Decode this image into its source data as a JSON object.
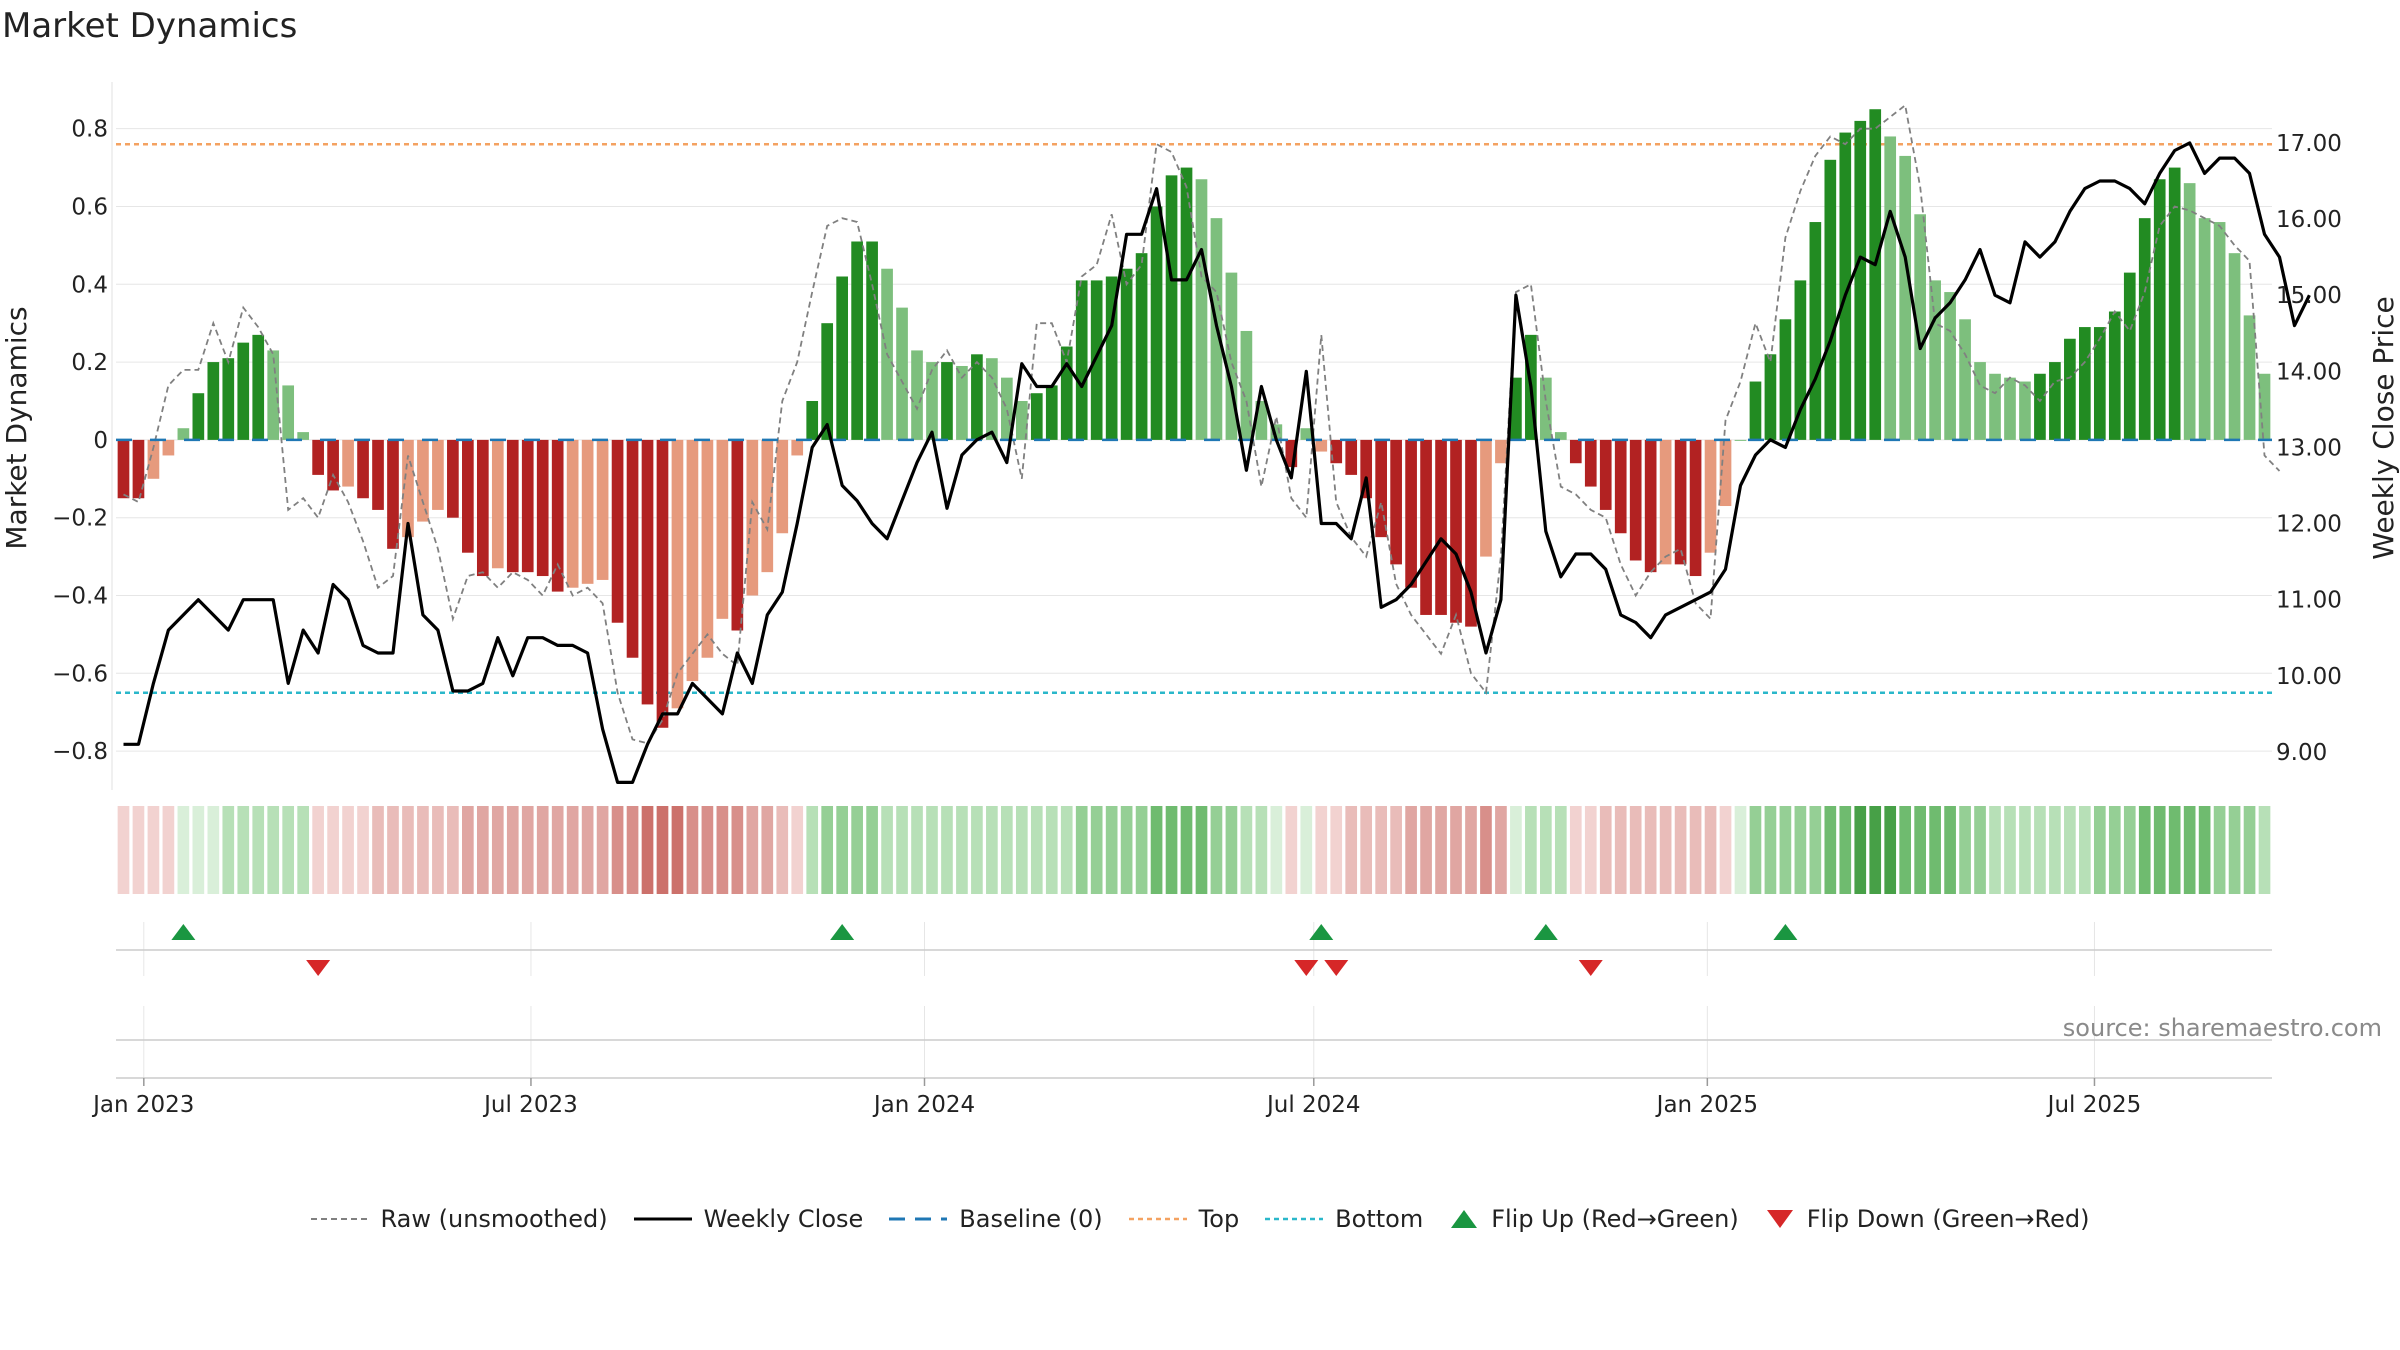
{
  "title": "Market Dynamics",
  "source": "source: sharemaestro.com",
  "colors": {
    "green_strong": "#228b22",
    "green_weak": "#7dbf7d",
    "red_strong": "#b22222",
    "red_weak": "#e69a7d",
    "price": "#000000",
    "raw": "#808080",
    "baseline": "#1f77b4",
    "top": "#f4a261",
    "bottom": "#2ab7ca",
    "flip_up": "#1a9641",
    "flip_down": "#d62728"
  },
  "legend": [
    {
      "key": "raw",
      "label": "Raw (unsmoothed)"
    },
    {
      "key": "close",
      "label": "Weekly Close"
    },
    {
      "key": "baseline",
      "label": "Baseline (0)"
    },
    {
      "key": "top",
      "label": "Top"
    },
    {
      "key": "bottom",
      "label": "Bottom"
    },
    {
      "key": "flip_up",
      "label": "Flip Up (Red→Green)"
    },
    {
      "key": "flip_down",
      "label": "Flip Down (Green→Red)"
    }
  ],
  "chart_data": {
    "type": "bar",
    "ylabel": "Market Dynamics",
    "y2label": "Weekly Close Price",
    "ylim": [
      -0.9,
      0.92
    ],
    "y2lim": [
      8.5,
      17.8
    ],
    "yticks": [
      -0.8,
      -0.6,
      -0.4,
      -0.2,
      0,
      0.2,
      0.4,
      0.6,
      0.8
    ],
    "yticklabels": [
      "−0.8",
      "−0.6",
      "−0.4",
      "−0.2",
      "0",
      "0.2",
      "0.4",
      "0.6",
      "0.8"
    ],
    "y2ticks": [
      9,
      10,
      11,
      12,
      13,
      14,
      15,
      16,
      17
    ],
    "y2ticklabels": [
      "9.00",
      "10.00",
      "11.00",
      "12.00",
      "13.00",
      "14.00",
      "15.00",
      "16.00",
      "17.00"
    ],
    "x_start": "2022-12-19",
    "xticks": [
      "2023-01-01",
      "2023-07-01",
      "2024-01-01",
      "2024-07-01",
      "2025-01-01",
      "2025-07-01"
    ],
    "xticklabels": [
      "Jan 2023",
      "Jul 2023",
      "Jan 2024",
      "Jul 2024",
      "Jan 2025",
      "Jul 2025"
    ],
    "top_level": 0.76,
    "bottom_level": -0.65,
    "baseline": 0,
    "grid": true,
    "legend_position": "bottom-center",
    "momentum": [
      -0.15,
      -0.15,
      -0.1,
      -0.04,
      0.03,
      0.12,
      0.2,
      0.21,
      0.25,
      0.27,
      0.23,
      0.14,
      0.02,
      -0.09,
      -0.13,
      -0.12,
      -0.15,
      -0.18,
      -0.28,
      -0.25,
      -0.21,
      -0.18,
      -0.2,
      -0.29,
      -0.35,
      -0.33,
      -0.34,
      -0.34,
      -0.35,
      -0.39,
      -0.38,
      -0.37,
      -0.36,
      -0.47,
      -0.56,
      -0.68,
      -0.74,
      -0.69,
      -0.62,
      -0.56,
      -0.46,
      -0.49,
      -0.4,
      -0.34,
      -0.24,
      -0.04,
      0.1,
      0.3,
      0.42,
      0.51,
      0.51,
      0.44,
      0.34,
      0.23,
      0.2,
      0.2,
      0.19,
      0.22,
      0.21,
      0.16,
      0.1,
      0.12,
      0.14,
      0.24,
      0.41,
      0.41,
      0.42,
      0.44,
      0.48,
      0.6,
      0.68,
      0.7,
      0.67,
      0.57,
      0.43,
      0.28,
      0.1,
      0.04,
      -0.07,
      0.03,
      -0.03,
      -0.06,
      -0.09,
      -0.15,
      -0.25,
      -0.32,
      -0.38,
      -0.45,
      -0.45,
      -0.47,
      -0.48,
      -0.3,
      -0.06,
      0.16,
      0.27,
      0.16,
      0.02,
      -0.06,
      -0.12,
      -0.18,
      -0.24,
      -0.31,
      -0.34,
      -0.32,
      -0.32,
      -0.35,
      -0.29,
      -0.17,
      0.0,
      0.15,
      0.22,
      0.31,
      0.41,
      0.56,
      0.72,
      0.79,
      0.82,
      0.85,
      0.78,
      0.73,
      0.58,
      0.41,
      0.38,
      0.31,
      0.2,
      0.17,
      0.16,
      0.15,
      0.17,
      0.2,
      0.26,
      0.29,
      0.29,
      0.33,
      0.43,
      0.57,
      0.67,
      0.7,
      0.66,
      0.57,
      0.56,
      0.48,
      0.32,
      0.17
    ],
    "raw": [
      -0.14,
      -0.16,
      -0.02,
      0.14,
      0.18,
      0.18,
      0.3,
      0.2,
      0.34,
      0.29,
      0.22,
      -0.18,
      -0.15,
      -0.2,
      -0.09,
      -0.16,
      -0.26,
      -0.38,
      -0.35,
      -0.04,
      -0.16,
      -0.28,
      -0.46,
      -0.35,
      -0.34,
      -0.38,
      -0.34,
      -0.36,
      -0.4,
      -0.32,
      -0.4,
      -0.38,
      -0.42,
      -0.65,
      -0.77,
      -0.78,
      -0.72,
      -0.6,
      -0.55,
      -0.5,
      -0.55,
      -0.58,
      -0.16,
      -0.23,
      0.1,
      0.2,
      0.38,
      0.55,
      0.57,
      0.56,
      0.4,
      0.22,
      0.15,
      0.08,
      0.18,
      0.23,
      0.16,
      0.2,
      0.16,
      0.08,
      -0.1,
      0.3,
      0.3,
      0.2,
      0.42,
      0.45,
      0.58,
      0.4,
      0.45,
      0.76,
      0.74,
      0.65,
      0.42,
      0.38,
      0.2,
      0.1,
      -0.12,
      0.06,
      -0.15,
      -0.2,
      0.27,
      -0.16,
      -0.25,
      -0.3,
      -0.16,
      -0.37,
      -0.45,
      -0.5,
      -0.55,
      -0.45,
      -0.6,
      -0.65,
      -0.3,
      0.38,
      0.4,
      0.1,
      -0.12,
      -0.14,
      -0.18,
      -0.2,
      -0.32,
      -0.4,
      -0.34,
      -0.3,
      -0.28,
      -0.42,
      -0.46,
      0.05,
      0.15,
      0.3,
      0.2,
      0.52,
      0.64,
      0.73,
      0.78,
      0.76,
      0.8,
      0.8,
      0.83,
      0.86,
      0.65,
      0.3,
      0.28,
      0.22,
      0.14,
      0.12,
      0.16,
      0.14,
      0.1,
      0.15,
      0.16,
      0.2,
      0.26,
      0.33,
      0.28,
      0.38,
      0.55,
      0.6,
      0.59,
      0.57,
      0.55,
      0.5,
      0.46,
      -0.04,
      -0.08
    ],
    "close": [
      9.1,
      9.1,
      9.9,
      10.6,
      10.8,
      11.0,
      10.8,
      10.6,
      11.0,
      11.0,
      11.0,
      9.9,
      10.6,
      10.3,
      11.2,
      11.0,
      10.4,
      10.3,
      10.3,
      12.0,
      10.8,
      10.6,
      9.8,
      9.8,
      9.9,
      10.5,
      10.0,
      10.5,
      10.5,
      10.4,
      10.4,
      10.3,
      9.3,
      8.6,
      8.6,
      9.1,
      9.5,
      9.5,
      9.9,
      9.7,
      9.5,
      10.3,
      9.9,
      10.8,
      11.1,
      12.0,
      13.0,
      13.3,
      12.5,
      12.3,
      12.0,
      11.8,
      12.3,
      12.8,
      13.2,
      12.2,
      12.9,
      13.1,
      13.2,
      12.8,
      14.1,
      13.8,
      13.8,
      14.1,
      13.8,
      14.2,
      14.6,
      15.8,
      15.8,
      16.4,
      15.2,
      15.2,
      15.6,
      14.6,
      13.8,
      12.7,
      13.8,
      13.1,
      12.6,
      14.0,
      12.0,
      12.0,
      11.8,
      12.6,
      10.9,
      11.0,
      11.2,
      11.5,
      11.8,
      11.6,
      11.1,
      10.3,
      11.0,
      15.0,
      13.8,
      11.9,
      11.3,
      11.6,
      11.6,
      11.4,
      10.8,
      10.7,
      10.5,
      10.8,
      10.9,
      11.0,
      11.1,
      11.4,
      12.5,
      12.9,
      13.1,
      13.0,
      13.5,
      13.9,
      14.4,
      15.0,
      15.5,
      15.4,
      16.1,
      15.5,
      14.3,
      14.7,
      14.9,
      15.2,
      15.6,
      15.0,
      14.9,
      15.7,
      15.5,
      15.7,
      16.1,
      16.4,
      16.5,
      16.5,
      16.4,
      16.2,
      16.6,
      16.9,
      17.0,
      16.6,
      16.8,
      16.8,
      16.6,
      15.8,
      15.5,
      14.6,
      15.0
    ],
    "cell_strength": [
      1,
      1,
      1,
      1,
      1,
      1,
      1,
      2,
      2,
      2,
      2,
      2,
      2,
      1,
      1,
      1,
      1,
      2,
      2,
      2,
      2,
      2,
      2,
      3,
      3,
      3,
      3,
      3,
      3,
      3,
      3,
      3,
      3,
      4,
      4,
      5,
      5,
      5,
      4,
      4,
      4,
      4,
      3,
      3,
      2,
      1,
      2,
      3,
      3,
      3,
      3,
      2,
      2,
      2,
      2,
      2,
      2,
      2,
      2,
      2,
      2,
      2,
      2,
      2,
      3,
      3,
      3,
      3,
      3,
      4,
      4,
      4,
      4,
      3,
      3,
      2,
      2,
      1,
      1,
      1,
      1,
      1,
      2,
      2,
      2,
      2,
      3,
      3,
      3,
      3,
      3,
      4,
      3,
      1,
      2,
      2,
      2,
      1,
      1,
      2,
      2,
      2,
      2,
      2,
      2,
      2,
      2,
      1,
      1,
      3,
      3,
      3,
      3,
      3,
      4,
      4,
      5,
      5,
      5,
      4,
      4,
      4,
      4,
      3,
      3,
      2,
      2,
      2,
      2,
      2,
      2,
      2,
      3,
      3,
      3,
      4,
      4,
      4,
      4,
      4,
      3,
      3,
      3,
      2,
      2,
      2
    ],
    "flip_up_weeks": [
      4,
      48,
      80,
      95,
      111
    ],
    "flip_down_weeks": [
      13,
      79,
      81,
      98
    ]
  }
}
